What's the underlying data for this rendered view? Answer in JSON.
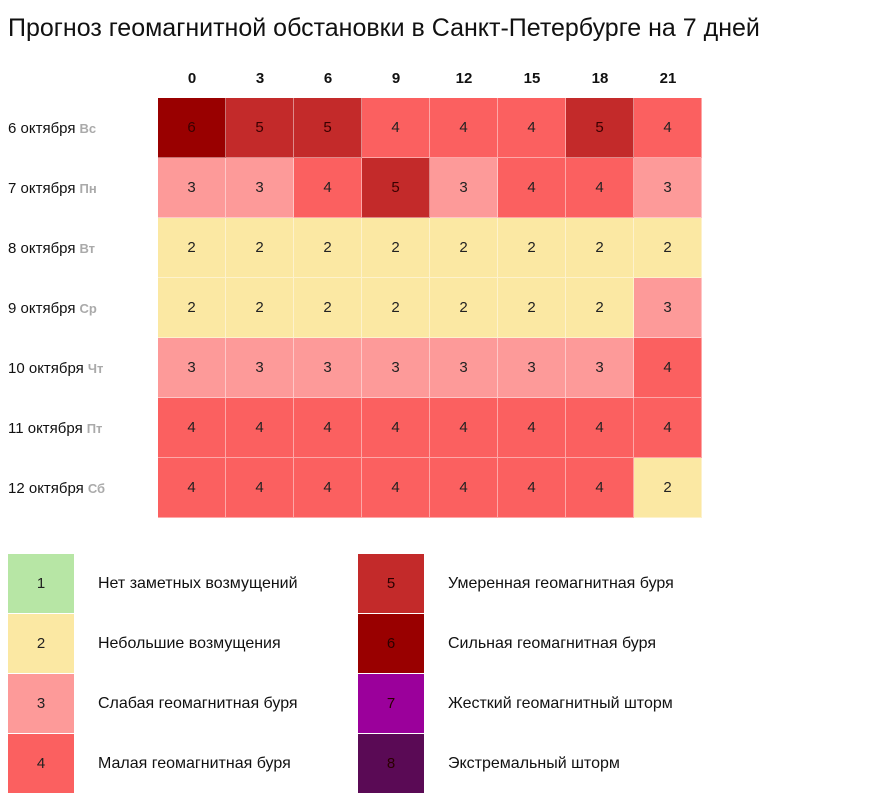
{
  "title": "Прогноз геомагнитной обстановки в Санкт-Петербурге на 7 дней",
  "colors": {
    "1": "#b7e6a5",
    "2": "#fbe8a3",
    "3": "#fd9a99",
    "4": "#fb6060",
    "5": "#c32a2a",
    "6": "#990000",
    "7": "#9b009b",
    "8": "#5a0a55"
  },
  "chart_data": {
    "type": "heatmap",
    "title": "Прогноз геомагнитной обстановки в Санкт-Петербурге на 7 дней",
    "x": [
      "0",
      "3",
      "6",
      "9",
      "12",
      "15",
      "18",
      "21"
    ],
    "rows": [
      {
        "date": "6 октября",
        "dow": "Вс",
        "values": [
          6,
          5,
          5,
          4,
          4,
          4,
          5,
          4
        ]
      },
      {
        "date": "7 октября",
        "dow": "Пн",
        "values": [
          3,
          3,
          4,
          5,
          3,
          4,
          4,
          3
        ]
      },
      {
        "date": "8 октября",
        "dow": "Вт",
        "values": [
          2,
          2,
          2,
          2,
          2,
          2,
          2,
          2
        ]
      },
      {
        "date": "9 октября",
        "dow": "Ср",
        "values": [
          2,
          2,
          2,
          2,
          2,
          2,
          2,
          3
        ]
      },
      {
        "date": "10 октября",
        "dow": "Чт",
        "values": [
          3,
          3,
          3,
          3,
          3,
          3,
          3,
          4
        ]
      },
      {
        "date": "11 октября",
        "dow": "Пт",
        "values": [
          4,
          4,
          4,
          4,
          4,
          4,
          4,
          4
        ]
      },
      {
        "date": "12 октября",
        "dow": "Сб",
        "values": [
          4,
          4,
          4,
          4,
          4,
          4,
          4,
          2
        ]
      }
    ]
  },
  "legend": [
    {
      "level": "1",
      "label": "Нет заметных возмущений"
    },
    {
      "level": "2",
      "label": "Небольшие возмущения"
    },
    {
      "level": "3",
      "label": "Слабая геомагнитная буря"
    },
    {
      "level": "4",
      "label": "Малая геомагнитная буря"
    },
    {
      "level": "5",
      "label": "Умеренная геомагнитная буря"
    },
    {
      "level": "6",
      "label": "Сильная геомагнитная буря"
    },
    {
      "level": "7",
      "label": "Жесткий геомагнитный шторм"
    },
    {
      "level": "8",
      "label": "Экстремальный шторм"
    }
  ]
}
